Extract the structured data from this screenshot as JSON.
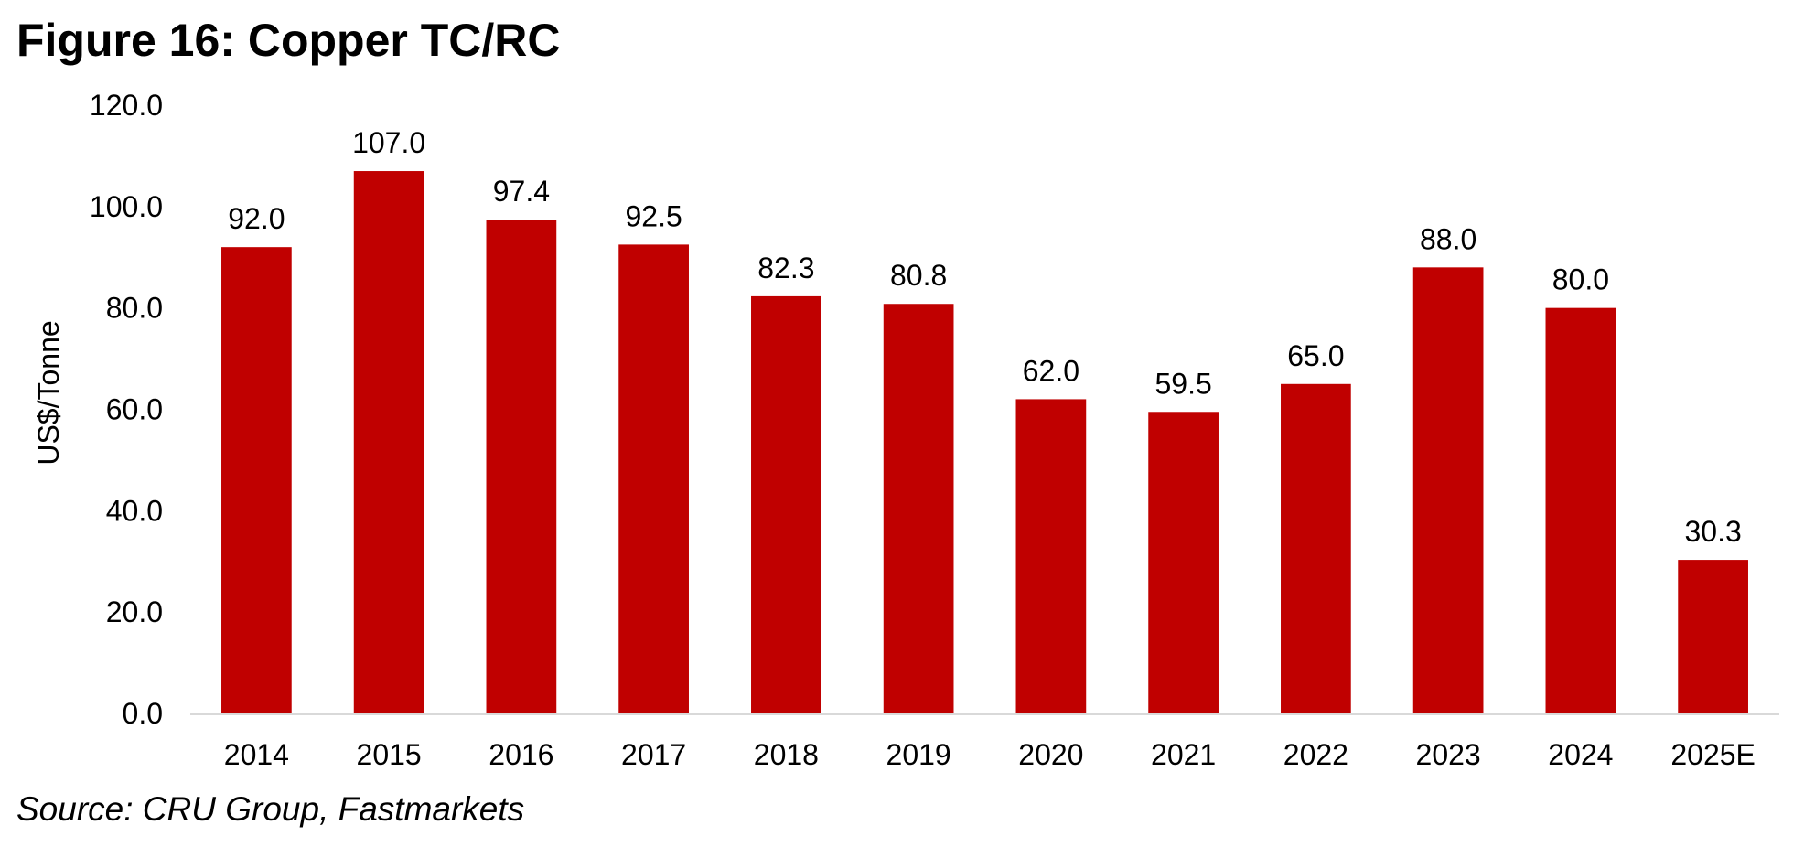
{
  "figure": {
    "title": "Figure 16: Copper TC/RC",
    "source": "Source: CRU Group, Fastmarkets"
  },
  "chart_data": {
    "type": "bar",
    "title": "",
    "xlabel": "",
    "ylabel": "US$/Tonne",
    "categories": [
      "2014",
      "2015",
      "2016",
      "2017",
      "2018",
      "2019",
      "2020",
      "2021",
      "2022",
      "2023",
      "2024",
      "2025E"
    ],
    "values": [
      92.0,
      107.0,
      97.4,
      92.5,
      82.3,
      80.8,
      62.0,
      59.5,
      65.0,
      88.0,
      80.0,
      30.3
    ],
    "data_labels": [
      "92.0",
      "107.0",
      "97.4",
      "92.5",
      "82.3",
      "80.8",
      "62.0",
      "59.5",
      "65.0",
      "88.0",
      "80.0",
      "30.3"
    ],
    "ylim": [
      0,
      120
    ],
    "yticks": [
      0,
      20,
      40,
      60,
      80,
      100,
      120
    ],
    "ytick_labels": [
      "0.0",
      "20.0",
      "40.0",
      "60.0",
      "80.0",
      "100.0",
      "120.0"
    ],
    "grid": false,
    "legend": "none",
    "bar_color": "#C00000",
    "axis_color": "#D9D9D9"
  }
}
